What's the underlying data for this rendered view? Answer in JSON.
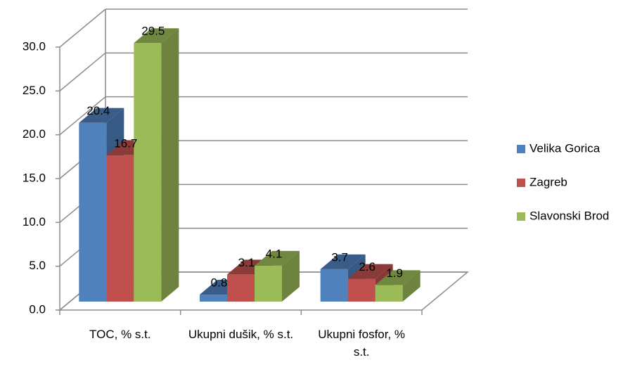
{
  "chart_data": {
    "type": "bar3d",
    "categories": [
      "TOC, % s.t.",
      "Ukupni dušik, % s.t.",
      "Ukupni fosfor, % s.t."
    ],
    "series": [
      {
        "name": "Velika Gorica",
        "color": "#4f81bd",
        "values": [
          20.4,
          0.8,
          3.7
        ]
      },
      {
        "name": "Zagreb",
        "color": "#c0504d",
        "values": [
          16.7,
          3.1,
          2.6
        ]
      },
      {
        "name": "Slavonski Brod",
        "color": "#9bbb59",
        "values": [
          29.5,
          4.1,
          1.9
        ]
      }
    ],
    "ylim": [
      0,
      30
    ],
    "yticks": [
      {
        "value": 0,
        "label": "0.0"
      },
      {
        "value": 5,
        "label": "5.0"
      },
      {
        "value": 10,
        "label": "10.0"
      },
      {
        "value": 15,
        "label": "15.0"
      },
      {
        "value": 20,
        "label": "20.0"
      },
      {
        "value": 25,
        "label": "25.0"
      },
      {
        "value": 30,
        "label": "30.0"
      }
    ],
    "grid": true,
    "legend": "right"
  }
}
